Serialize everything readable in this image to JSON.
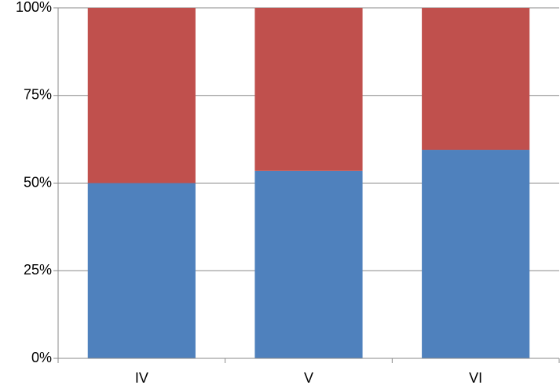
{
  "chart_data": {
    "type": "stacked_bar",
    "categories": [
      "IV",
      "V",
      "VI"
    ],
    "series": [
      {
        "color": "#4f81bd",
        "values": [
          50,
          53.5,
          59.5
        ]
      },
      {
        "color": "#c0504d",
        "values": [
          50,
          46.5,
          40.5
        ]
      }
    ],
    "ylim": [
      0,
      100
    ],
    "yticks": [
      {
        "value": 0,
        "label": "0%"
      },
      {
        "value": 25,
        "label": "25%"
      },
      {
        "value": 50,
        "label": "50%"
      },
      {
        "value": 75,
        "label": "75%"
      },
      {
        "value": 100,
        "label": "100%"
      }
    ],
    "grid": true
  }
}
